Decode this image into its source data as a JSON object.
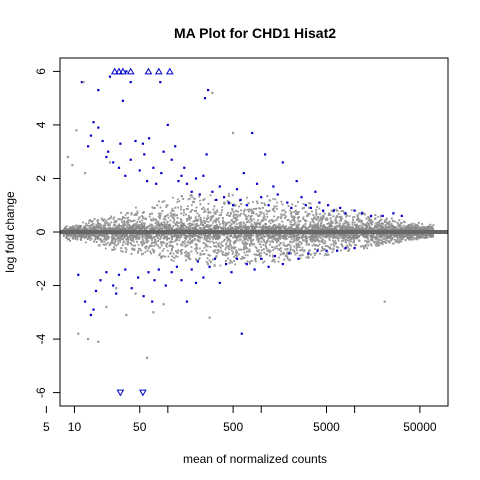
{
  "chart_data": {
    "type": "scatter",
    "title": "MA Plot for CHD1 Hisat2",
    "xlabel": "mean of normalized counts",
    "ylabel": "log fold change",
    "x_scale": "log10",
    "xlim": [
      0.7,
      10000
    ],
    "ylim": [
      -6.5,
      6.5
    ],
    "x_ticks": [
      {
        "value": 0.5,
        "label": "5"
      },
      {
        "value": 1,
        "label": "10"
      },
      {
        "value": 5,
        "label": "50"
      },
      {
        "value": 50,
        "label": "500"
      },
      {
        "value": 500,
        "label": "5000"
      },
      {
        "value": 5000,
        "label": "50000"
      }
    ],
    "x_minor_ticks": [
      10,
      100,
      1000
    ],
    "y_ticks": [
      {
        "value": -6,
        "label": "-6"
      },
      {
        "value": -4,
        "label": "-4"
      },
      {
        "value": -2,
        "label": "-2"
      },
      {
        "value": 0,
        "label": "0"
      },
      {
        "value": 2,
        "label": "2"
      },
      {
        "value": 4,
        "label": "4"
      },
      {
        "value": 6,
        "label": "6"
      }
    ],
    "grid": false,
    "legend": "none",
    "hline": {
      "y": 0,
      "color": "#666666"
    },
    "colors": {
      "non_significant": "#999999",
      "significant": "#0000cc",
      "zero_line": "#666666"
    },
    "background_cloud": {
      "description": "dense grey points for non-significant genes",
      "upper_envelope": [
        [
          0.8,
          0.1
        ],
        [
          1,
          0.3
        ],
        [
          2,
          0.6
        ],
        [
          5,
          1.0
        ],
        [
          10,
          1.3
        ],
        [
          30,
          1.5
        ],
        [
          100,
          1.4
        ],
        [
          300,
          1.1
        ],
        [
          1000,
          0.8
        ],
        [
          3000,
          0.5
        ],
        [
          6000,
          0.3
        ]
      ],
      "lower_envelope": [
        [
          0.8,
          -0.1
        ],
        [
          1,
          -0.3
        ],
        [
          2,
          -0.6
        ],
        [
          5,
          -0.9
        ],
        [
          10,
          -1.1
        ],
        [
          30,
          -1.3
        ],
        [
          100,
          -1.2
        ],
        [
          300,
          -1.0
        ],
        [
          1000,
          -0.7
        ],
        [
          3000,
          -0.4
        ],
        [
          6000,
          -0.2
        ]
      ]
    },
    "series": [
      {
        "name": "",
        "role": "significant",
        "points": [
          [
            1.2,
            5.6
          ],
          [
            1.8,
            5.3
          ],
          [
            2.4,
            5.8
          ],
          [
            3.3,
            4.9
          ],
          [
            3.6,
            6.0
          ],
          [
            4.0,
            5.6
          ],
          [
            8.3,
            5.6
          ],
          [
            25,
            5.0
          ],
          [
            27,
            5.3
          ],
          [
            1.5,
            3.6
          ],
          [
            1.6,
            4.1
          ],
          [
            1.8,
            3.9
          ],
          [
            2.0,
            3.4
          ],
          [
            2.3,
            3.0
          ],
          [
            2.6,
            2.6
          ],
          [
            3.0,
            2.4
          ],
          [
            3.1,
            3.3
          ],
          [
            3.5,
            2.1
          ],
          [
            4.0,
            2.7
          ],
          [
            4.5,
            3.4
          ],
          [
            5.0,
            2.3
          ],
          [
            5.6,
            2.9
          ],
          [
            6.0,
            1.9
          ],
          [
            6.3,
            3.5
          ],
          [
            7.0,
            2.4
          ],
          [
            7.5,
            1.8
          ],
          [
            8.5,
            2.2
          ],
          [
            9.0,
            3.0
          ],
          [
            10.0,
            4.0
          ],
          [
            11,
            2.7
          ],
          [
            12,
            3.2
          ],
          [
            13,
            1.9
          ],
          [
            14,
            2.1
          ],
          [
            16,
            1.8
          ],
          [
            18,
            1.5
          ],
          [
            20,
            2.0
          ],
          [
            22,
            1.4
          ],
          [
            24,
            2.1
          ],
          [
            26,
            2.9
          ],
          [
            30,
            1.5
          ],
          [
            33,
            1.2
          ],
          [
            36,
            1.7
          ],
          [
            40,
            1.3
          ],
          [
            45,
            1.1
          ],
          [
            50,
            1.0
          ],
          [
            55,
            1.6
          ],
          [
            60,
            1.2
          ],
          [
            70,
            1.0
          ],
          [
            80,
            3.7
          ],
          [
            90,
            1.8
          ],
          [
            100,
            1.3
          ],
          [
            110,
            2.9
          ],
          [
            120,
            1.0
          ],
          [
            135,
            1.7
          ],
          [
            150,
            1.4
          ],
          [
            170,
            2.6
          ],
          [
            190,
            1.1
          ],
          [
            210,
            0.9
          ],
          [
            240,
            1.9
          ],
          [
            270,
            1.3
          ],
          [
            300,
            1.0
          ],
          [
            340,
            0.9
          ],
          [
            380,
            1.5
          ],
          [
            420,
            1.1
          ],
          [
            460,
            0.8
          ],
          [
            520,
            1.0
          ],
          [
            600,
            0.8
          ],
          [
            700,
            0.9
          ],
          [
            800,
            0.7
          ],
          [
            1000,
            0.8
          ],
          [
            1200,
            0.7
          ],
          [
            1500,
            0.6
          ],
          [
            2000,
            0.6
          ],
          [
            2600,
            0.7
          ],
          [
            3200,
            0.6
          ],
          [
            1.4,
            3.2
          ],
          [
            2.2,
            2.8
          ],
          [
            5.4,
            3.3
          ],
          [
            15,
            2.4
          ],
          [
            65,
            2.2
          ],
          [
            1.1,
            -1.6
          ],
          [
            1.3,
            -2.6
          ],
          [
            1.5,
            -3.1
          ],
          [
            1.7,
            -2.2
          ],
          [
            1.9,
            -1.8
          ],
          [
            2.2,
            -1.5
          ],
          [
            2.6,
            -2.0
          ],
          [
            3.0,
            -1.6
          ],
          [
            3.5,
            -1.4
          ],
          [
            4.1,
            -2.1
          ],
          [
            4.8,
            -1.7
          ],
          [
            5.5,
            -2.4
          ],
          [
            6.2,
            -1.5
          ],
          [
            7.2,
            -1.8
          ],
          [
            8.0,
            -1.4
          ],
          [
            9.5,
            -2.0
          ],
          [
            11,
            -1.5
          ],
          [
            12.5,
            -1.3
          ],
          [
            14,
            -1.8
          ],
          [
            16,
            -2.6
          ],
          [
            18,
            -1.4
          ],
          [
            21,
            -1.1
          ],
          [
            24,
            -1.7
          ],
          [
            28,
            -1.3
          ],
          [
            32,
            -1.0
          ],
          [
            36,
            -1.9
          ],
          [
            42,
            -1.2
          ],
          [
            48,
            -1.5
          ],
          [
            55,
            -1.0
          ],
          [
            62,
            -3.8
          ],
          [
            70,
            -1.2
          ],
          [
            85,
            -1.4
          ],
          [
            100,
            -1.0
          ],
          [
            120,
            -1.3
          ],
          [
            140,
            -0.9
          ],
          [
            170,
            -1.2
          ],
          [
            200,
            -0.8
          ],
          [
            250,
            -1.0
          ],
          [
            320,
            -0.8
          ],
          [
            400,
            -0.7
          ],
          [
            500,
            -0.7
          ],
          [
            650,
            -0.7
          ],
          [
            800,
            -0.6
          ],
          [
            1000,
            -0.6
          ],
          [
            1.6,
            -2.9
          ],
          [
            2.8,
            -2.3
          ],
          [
            6.8,
            -2.6
          ],
          [
            20,
            -1.9
          ]
        ]
      },
      {
        "name": "",
        "role": "significant_out_of_range_upper",
        "shape": "triangle-up",
        "points": [
          [
            2.7,
            6
          ],
          [
            3.0,
            6
          ],
          [
            3.3,
            6
          ],
          [
            4.0,
            6
          ],
          [
            6.2,
            6
          ],
          [
            8.0,
            6
          ],
          [
            10.5,
            6
          ]
        ]
      },
      {
        "name": "",
        "role": "significant_out_of_range_lower",
        "shape": "triangle-down",
        "points": [
          [
            3.1,
            -6
          ],
          [
            5.4,
            -6
          ]
        ]
      },
      {
        "name": "",
        "role": "non_significant_outliers",
        "points": [
          [
            0.85,
            2.8
          ],
          [
            1.05,
            3.8
          ],
          [
            1.25,
            5.6
          ],
          [
            1.1,
            -3.8
          ],
          [
            1.4,
            -4.0
          ],
          [
            1.8,
            -4.1
          ],
          [
            2.2,
            -2.8
          ],
          [
            2.8,
            -2.1
          ],
          [
            3.6,
            -3.1
          ],
          [
            4.5,
            -2.3
          ],
          [
            6.0,
            -4.7
          ],
          [
            7.0,
            -3.0
          ],
          [
            9.0,
            -2.7
          ],
          [
            28,
            -3.2
          ],
          [
            2100,
            -2.6
          ],
          [
            0.95,
            2.5
          ],
          [
            1.3,
            2.2
          ],
          [
            2.4,
            2.6
          ],
          [
            30,
            5.2
          ],
          [
            50,
            3.7
          ]
        ]
      }
    ]
  }
}
